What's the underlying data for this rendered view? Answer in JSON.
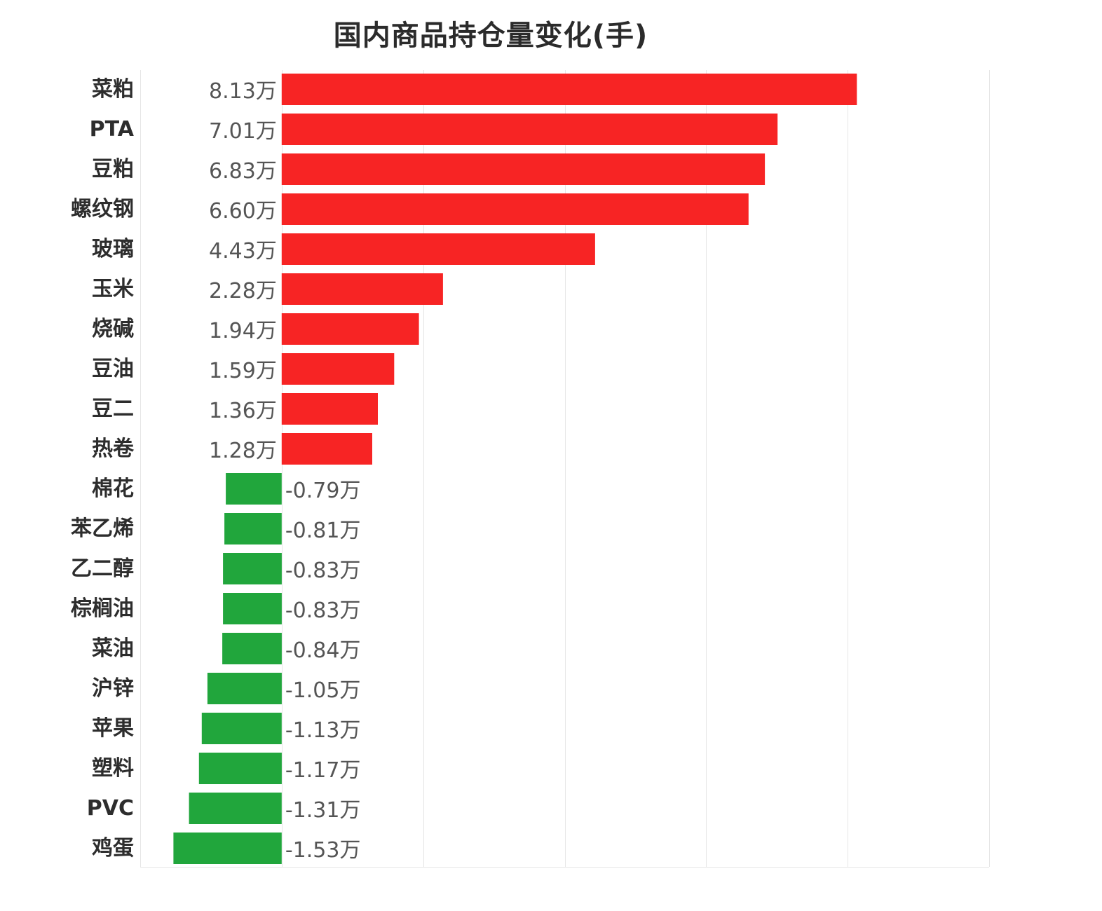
{
  "chart_data": {
    "type": "bar",
    "orientation": "horizontal",
    "title": "国内商品持仓量变化(手)",
    "unit_suffix": "万",
    "categories": [
      "菜粕",
      "PTA",
      "豆粕",
      "螺纹钢",
      "玻璃",
      "玉米",
      "烧碱",
      "豆油",
      "豆二",
      "热卷",
      "棉花",
      "苯乙烯",
      "乙二醇",
      "棕榈油",
      "菜油",
      "沪锌",
      "苹果",
      "塑料",
      "PVC",
      "鸡蛋"
    ],
    "values": [
      8.13,
      7.01,
      6.83,
      6.6,
      4.43,
      2.28,
      1.94,
      1.59,
      1.36,
      1.28,
      -0.79,
      -0.81,
      -0.83,
      -0.83,
      -0.84,
      -1.05,
      -1.13,
      -1.17,
      -1.31,
      -1.53
    ],
    "value_labels": [
      "8.13万",
      "7.01万",
      "6.83万",
      "6.60万",
      "4.43万",
      "2.28万",
      "1.94万",
      "1.59万",
      "1.36万",
      "1.28万",
      "-0.79万",
      "-0.81万",
      "-0.83万",
      "-0.83万",
      "-0.84万",
      "-1.05万",
      "-1.13万",
      "-1.17万",
      "-1.31万",
      "-1.53万"
    ],
    "xlim": [
      -2,
      10
    ],
    "grid": true,
    "colors": {
      "positive": "#f72424",
      "negative": "#21a63c"
    }
  }
}
